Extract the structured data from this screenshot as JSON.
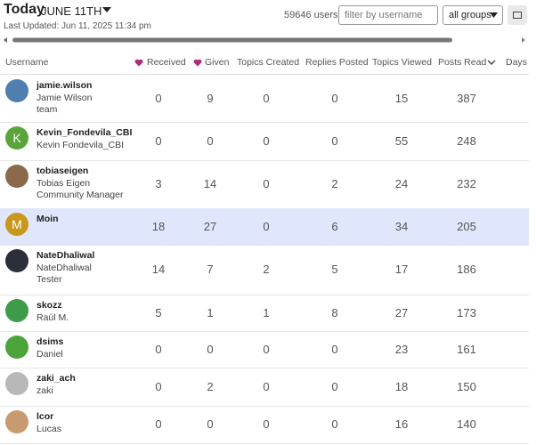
{
  "header": {
    "title": "Today",
    "date": "JUNE 11TH",
    "last_updated": "Last Updated: Jun 11, 2025 11:34 pm",
    "user_count": "59646 users"
  },
  "filter": {
    "placeholder": "filter by username",
    "group": "all groups"
  },
  "table": {
    "columns": [
      "Username",
      "Received",
      "Given",
      "Topics Created",
      "Replies Posted",
      "Topics Viewed",
      "Posts Read",
      "Days"
    ],
    "rows": [
      {
        "username": "jamie.wilson",
        "name": "Jamie Wilson",
        "title": "team",
        "stats": [
          0,
          9,
          0,
          0,
          15,
          387
        ]
      },
      {
        "username": "Kevin_Fondevila_CBI",
        "name": "Kevin Fondevila_CBI",
        "avatar": "K",
        "stats": [
          0,
          0,
          0,
          0,
          55,
          248
        ]
      },
      {
        "username": "tobiaseigen",
        "name": "Tobias Eigen",
        "title": "Community Manager",
        "stats": [
          3,
          14,
          0,
          2,
          24,
          232
        ]
      },
      {
        "username": "Moin",
        "avatar": "M",
        "stats": [
          18,
          27,
          0,
          6,
          34,
          205
        ]
      },
      {
        "username": "NateDhaliwal",
        "name": "NateDhaliwal",
        "title": "Tester",
        "stats": [
          14,
          7,
          2,
          5,
          17,
          186
        ]
      },
      {
        "username": "skozz",
        "name": "Raúl M.",
        "stats": [
          5,
          1,
          1,
          8,
          27,
          173
        ]
      },
      {
        "username": "dsims",
        "name": "Daniel",
        "stats": [
          0,
          0,
          0,
          0,
          23,
          161
        ]
      },
      {
        "username": "zaki_ach",
        "name": "zaki",
        "stats": [
          0,
          2,
          0,
          0,
          18,
          150
        ]
      },
      {
        "username": "lcor",
        "name": "Lucas",
        "stats": [
          0,
          0,
          0,
          0,
          16,
          140
        ]
      }
    ]
  }
}
